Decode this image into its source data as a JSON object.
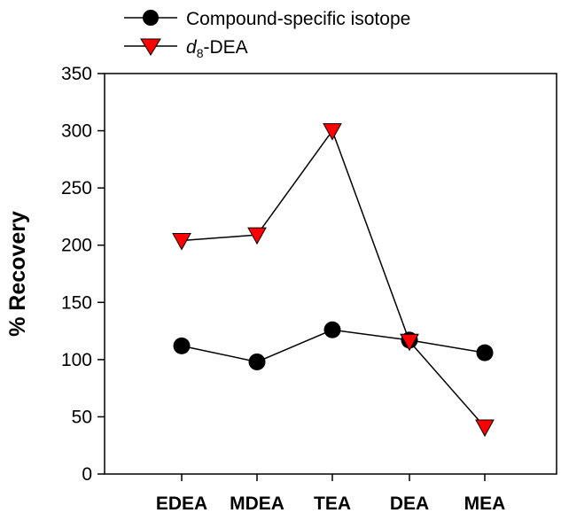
{
  "chart_data": {
    "type": "line",
    "categories": [
      "EDEA",
      "MDEA",
      "TEA",
      "DEA",
      "MEA"
    ],
    "ylabel": "% Recovery",
    "xlabel": "",
    "ylim": [
      0,
      350
    ],
    "yticks": [
      "0",
      "50",
      "100",
      "150",
      "200",
      "250",
      "300",
      "350"
    ],
    "grid": false,
    "legend_position": "top-left",
    "series": [
      {
        "name": "Compound-specific isotope",
        "marker": "circle",
        "color": "#000000",
        "values": [
          112,
          98,
          126,
          117,
          106
        ]
      },
      {
        "name_italic": "d",
        "name_sub": "8",
        "name_rest": "-DEA",
        "marker": "triangle-down",
        "color": "#ff0000",
        "values": [
          204,
          209,
          300,
          116,
          41
        ]
      }
    ]
  }
}
